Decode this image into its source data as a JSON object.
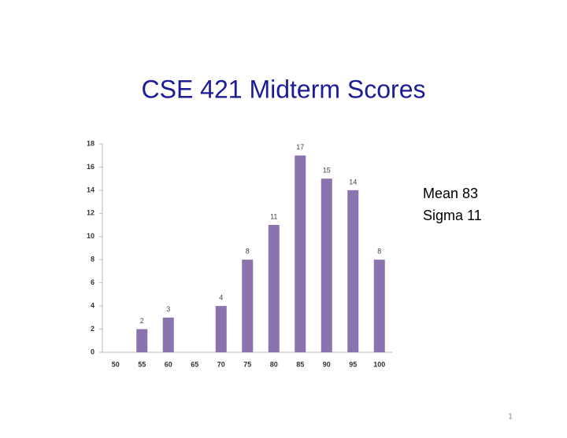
{
  "chart_data": {
    "type": "bar",
    "title": "CSE 421 Midterm Scores",
    "categories": [
      "50",
      "55",
      "60",
      "65",
      "70",
      "75",
      "80",
      "85",
      "90",
      "95",
      "100"
    ],
    "values": [
      null,
      2,
      3,
      null,
      4,
      8,
      11,
      17,
      15,
      14,
      8
    ],
    "color": "#8b73ad",
    "ylim": [
      0,
      18
    ],
    "yticks": [
      0,
      2,
      4,
      6,
      8,
      10,
      12,
      14,
      16,
      18
    ],
    "data_labels": true,
    "annotations": [
      "Mean 83",
      "Sigma 11"
    ]
  },
  "slide_number": 1
}
